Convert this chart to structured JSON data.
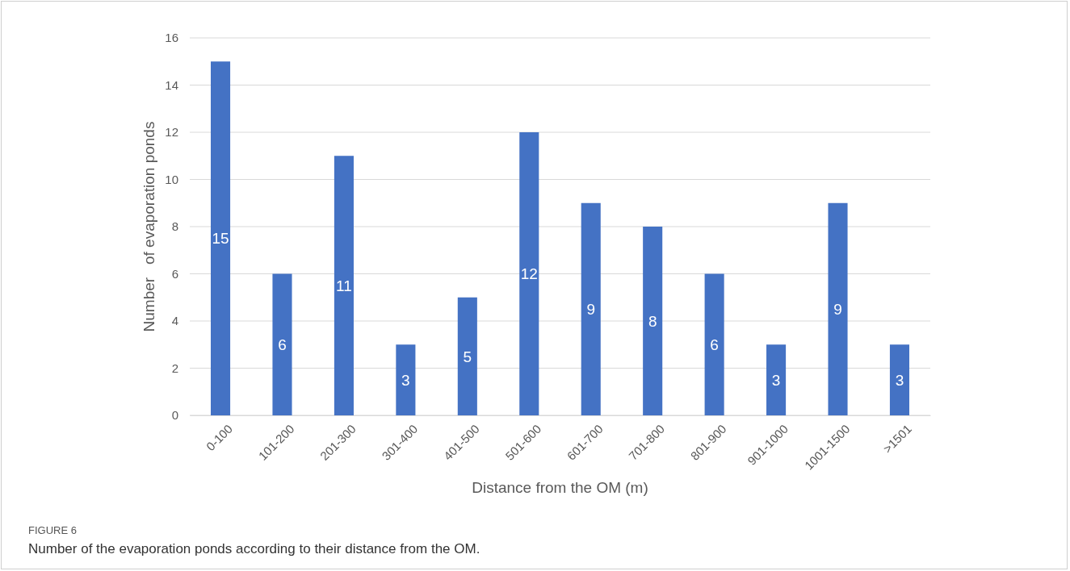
{
  "chart_data": {
    "type": "bar",
    "xlabel": "Distance from the OM (m)",
    "ylabel": "Number   of evaporation ponds",
    "categories": [
      "0-100",
      "101-200",
      "201-300",
      "301-400",
      "401-500",
      "501-600",
      "601-700",
      "701-800",
      "801-900",
      "901-1000",
      "1001-1500",
      ">1501"
    ],
    "values": [
      15,
      6,
      11,
      3,
      5,
      12,
      9,
      8,
      6,
      3,
      9,
      3
    ],
    "color": "#4472c4",
    "ylim": [
      0,
      16
    ],
    "yticks": [
      0,
      2,
      4,
      6,
      8,
      10,
      12,
      14,
      16
    ],
    "grid": "y",
    "data_labels": true,
    "annotations": [
      "FIGURE 6",
      "Number of the evaporation ponds according to their distance from the OM."
    ]
  }
}
